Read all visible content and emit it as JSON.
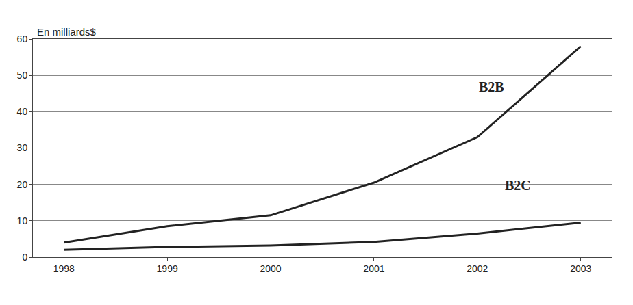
{
  "chart_data": {
    "type": "line",
    "y_label": "En milliards$",
    "categories": [
      "1998",
      "1999",
      "2000",
      "2001",
      "2002",
      "2003"
    ],
    "series": [
      {
        "name": "B2B",
        "color": "#222222",
        "values": [
          4,
          8.5,
          11.5,
          20.5,
          33,
          58
        ]
      },
      {
        "name": "B2C",
        "color": "#222222",
        "values": [
          2,
          2.8,
          3.2,
          4.2,
          6.5,
          9.5
        ]
      }
    ],
    "ylim": [
      0,
      60
    ],
    "yticks": [
      0,
      10,
      20,
      30,
      40,
      50,
      60
    ],
    "grid": true
  }
}
